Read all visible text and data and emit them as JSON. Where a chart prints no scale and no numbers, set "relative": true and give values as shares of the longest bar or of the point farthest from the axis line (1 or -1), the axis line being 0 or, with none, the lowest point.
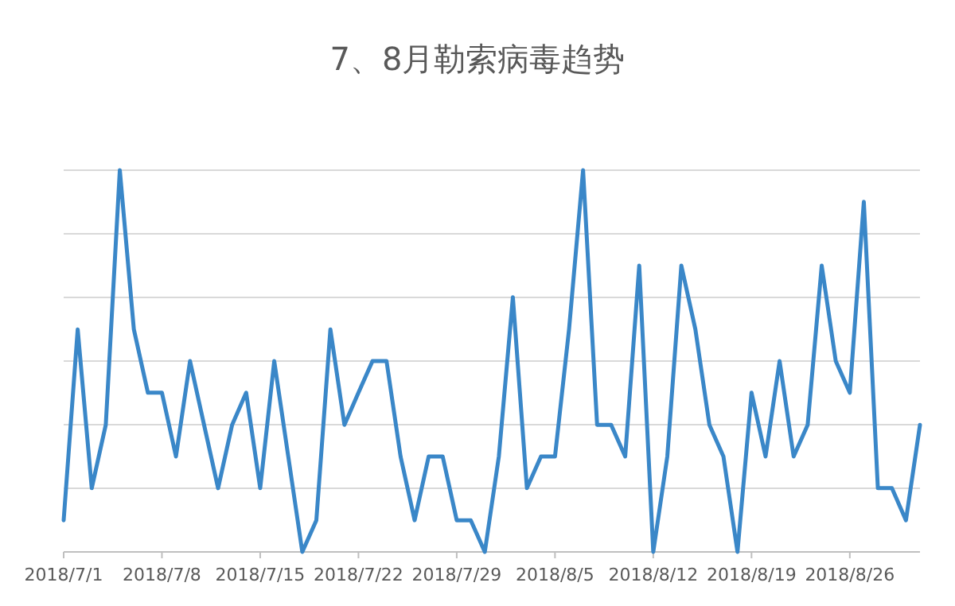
{
  "chart_data": {
    "type": "line",
    "title": "7、8月勒索病毒趋势",
    "relative": true,
    "grid": "y",
    "tick_labels": "x",
    "marker": "none",
    "line_style": "solid",
    "xlim": [
      "2018-07-01",
      "2018-08-31"
    ],
    "xticks": [
      {
        "value": "2018-07-01",
        "label": "2018/7/1"
      },
      {
        "value": "2018-07-08",
        "label": "2018/7/8"
      },
      {
        "value": "2018-07-15",
        "label": "2018/7/15"
      },
      {
        "value": "2018-07-22",
        "label": "2018/7/22"
      },
      {
        "value": "2018-07-29",
        "label": "2018/7/29"
      },
      {
        "value": "2018-08-05",
        "label": "2018/8/5"
      },
      {
        "value": "2018-08-12",
        "label": "2018/8/12"
      },
      {
        "value": "2018-08-19",
        "label": "2018/8/19"
      },
      {
        "value": "2018-08-26",
        "label": "2018/8/26"
      }
    ],
    "x": [
      "2018-07-01",
      "2018-07-02",
      "2018-07-03",
      "2018-07-04",
      "2018-07-05",
      "2018-07-06",
      "2018-07-07",
      "2018-07-08",
      "2018-07-09",
      "2018-07-10",
      "2018-07-11",
      "2018-07-12",
      "2018-07-13",
      "2018-07-14",
      "2018-07-15",
      "2018-07-16",
      "2018-07-17",
      "2018-07-18",
      "2018-07-19",
      "2018-07-20",
      "2018-07-21",
      "2018-07-22",
      "2018-07-23",
      "2018-07-24",
      "2018-07-25",
      "2018-07-26",
      "2018-07-27",
      "2018-07-28",
      "2018-07-29",
      "2018-07-30",
      "2018-07-31",
      "2018-08-01",
      "2018-08-02",
      "2018-08-03",
      "2018-08-04",
      "2018-08-05",
      "2018-08-06",
      "2018-08-07",
      "2018-08-08",
      "2018-08-09",
      "2018-08-10",
      "2018-08-11",
      "2018-08-12",
      "2018-08-13",
      "2018-08-14",
      "2018-08-15",
      "2018-08-16",
      "2018-08-17",
      "2018-08-18",
      "2018-08-19",
      "2018-08-20",
      "2018-08-21",
      "2018-08-22",
      "2018-08-23",
      "2018-08-24",
      "2018-08-25",
      "2018-08-26",
      "2018-08-27",
      "2018-08-28",
      "2018-08-29",
      "2018-08-30",
      "2018-08-31"
    ],
    "series": [
      {
        "color": "#3a87c8",
        "values": [
          0.083,
          0.583,
          0.167,
          0.333,
          1,
          0.583,
          0.417,
          0.417,
          0.25,
          0.5,
          0.333,
          0.167,
          0.333,
          0.417,
          0.167,
          0.5,
          0.25,
          0,
          0.083,
          0.583,
          0.333,
          0.417,
          0.5,
          0.5,
          0.25,
          0.083,
          0.25,
          0.25,
          0.083,
          0.083,
          0,
          0.25,
          0.667,
          0.167,
          0.25,
          0.25,
          0.583,
          1,
          0.333,
          0.333,
          0.25,
          0.75,
          0,
          0.25,
          0.75,
          0.583,
          0.333,
          0.25,
          0,
          0.417,
          0.25,
          0.5,
          0.25,
          0.333,
          0.75,
          0.5,
          0.417,
          0.917,
          0.167,
          0.167,
          0.083,
          0.333
        ]
      }
    ]
  }
}
